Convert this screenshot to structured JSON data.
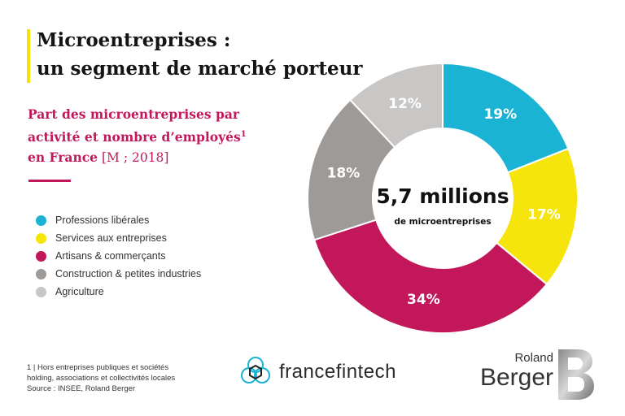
{
  "title": {
    "line1": "Microentreprises :",
    "line2": "un segment de marché porteur"
  },
  "subtitle": {
    "line1": "Part des microentreprises par",
    "line2": "activité et nombre d’employés",
    "sup": "1",
    "line3": "en France",
    "unit": " [M ; 2018]"
  },
  "center": {
    "value": "5,7 millions",
    "label": "de microentreprises"
  },
  "footnote": {
    "line1": "1 | Hors entreprises publiques et sociétés",
    "line2": "holding, associations et collectivités locales",
    "line3": "Source : INSEE, Roland Berger"
  },
  "logos": {
    "francefintech": "francefintech",
    "rb_roland": "Roland",
    "rb_berger": "Berger"
  },
  "chart_data": {
    "type": "pie",
    "donut": true,
    "title": "Part des microentreprises par activité et nombre d’employés",
    "categories": [
      "Professions libérales",
      "Services aux entreprises",
      "Artisans & commerçants",
      "Construction & petites industries",
      "Agriculture"
    ],
    "values": [
      19,
      17,
      34,
      18,
      12
    ],
    "labels": [
      "19%",
      "17%",
      "34%",
      "18%",
      "12%"
    ],
    "unit": "%",
    "total": "5,7 millions",
    "colors": [
      "#1bb3d4",
      "#f5e50c",
      "#c2185b",
      "#9e9a98",
      "#c9c7c6"
    ],
    "legend": "left"
  }
}
